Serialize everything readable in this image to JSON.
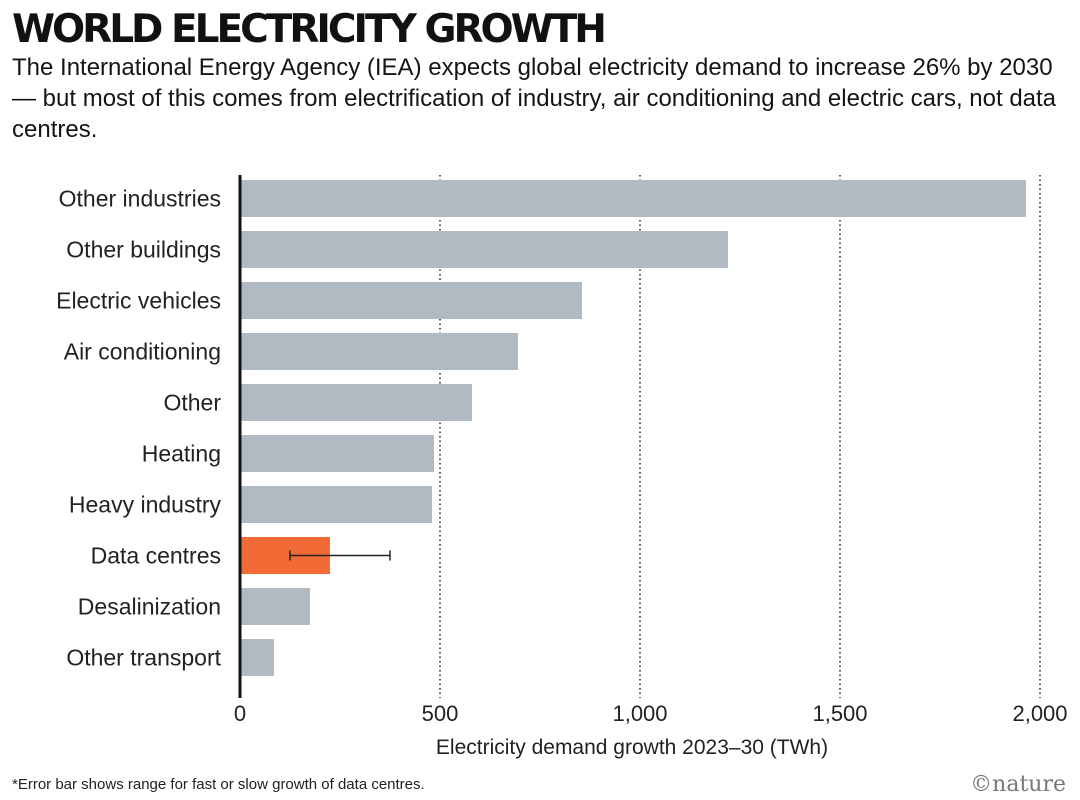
{
  "header": {
    "title": "WORLD ELECTRICITY GROWTH",
    "subtitle": "The International Energy Agency (IEA) expects global electricity demand to increase 26% by 2030 — but most of this comes from electrification of industry, air conditioning and electric cars, not data centres."
  },
  "chart_data": {
    "type": "bar",
    "orientation": "horizontal",
    "categories": [
      "Other industries",
      "Other buildings",
      "Electric vehicles",
      "Air conditioning",
      "Other",
      "Heating",
      "Heavy industry",
      "Data centres",
      "Desalinization",
      "Other transport"
    ],
    "values": [
      1965,
      1220,
      855,
      695,
      580,
      485,
      480,
      225,
      175,
      85
    ],
    "highlight": {
      "category": "Data centres",
      "color": "#f26a36"
    },
    "bar_color": "#b1b9c2",
    "error_bar": {
      "category": "Data centres",
      "low": 125,
      "high": 375
    },
    "xlabel": "Electricity demand growth 2023–30 (TWh)",
    "xlim": [
      0,
      2000
    ],
    "xticks": [
      0,
      500,
      1000,
      1500,
      2000
    ],
    "xtick_labels": [
      "0",
      "500",
      "1,000",
      "1,500",
      "2,000"
    ],
    "grid": "vertical dotted"
  },
  "footer": {
    "footnote": "*Error bar shows range for fast or slow growth of data centres.",
    "credit": "©nature"
  }
}
